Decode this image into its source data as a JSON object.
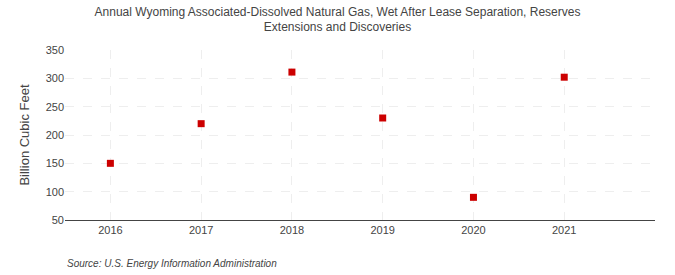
{
  "chart_data": {
    "type": "scatter",
    "title": "Annual Wyoming Associated-Dissolved Natural Gas, Wet After Lease Separation, Reserves\nExtensions and Discoveries",
    "ylabel": "Billion Cubic Feet",
    "annotations": [
      "Source: U.S. Energy Information Administration"
    ],
    "x": [
      2016,
      2017,
      2018,
      2019,
      2020,
      2021
    ],
    "values": [
      150,
      220,
      311,
      230,
      90,
      302
    ],
    "xlim": [
      2015.5,
      2022.0
    ],
    "xticks": [
      2016,
      2017,
      2018,
      2019,
      2020,
      2021
    ],
    "ylim": [
      50,
      350
    ],
    "yticks": [
      50,
      100,
      150,
      200,
      250,
      300,
      350
    ],
    "color": "#cc0000",
    "marker": "square",
    "grid": true
  }
}
